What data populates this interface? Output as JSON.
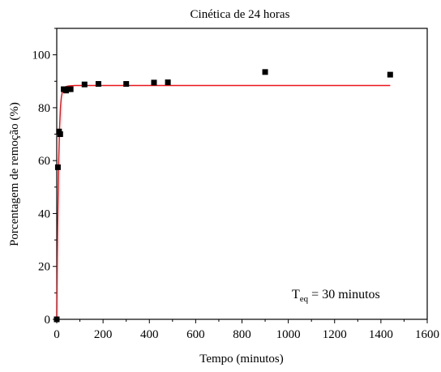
{
  "chart_data": {
    "type": "scatter",
    "title": "Cinética de 24 horas",
    "xlabel": "Tempo (minutos)",
    "ylabel": "Porcentagem de remoção (%)",
    "xlim": [
      0,
      1600
    ],
    "ylim": [
      0,
      110
    ],
    "x_ticks": [
      "0",
      "200",
      "400",
      "600",
      "800",
      "1000",
      "1200",
      "1400",
      "1600"
    ],
    "y_ticks": [
      "0",
      "20",
      "40",
      "60",
      "80",
      "100"
    ],
    "grid": false,
    "series": [
      {
        "type": "scatter",
        "marker": "square",
        "color": "#000000",
        "x": [
          0,
          5,
          10,
          15,
          30,
          40,
          50,
          60,
          120,
          180,
          300,
          420,
          480,
          900,
          1440
        ],
        "y": [
          0,
          57.5,
          71,
          70,
          87,
          86.5,
          87,
          87,
          88.8,
          89,
          89,
          89.5,
          89.6,
          93.5,
          92.5
        ]
      },
      {
        "type": "line",
        "color": "#e8141b",
        "x": [
          0,
          4,
          8,
          12,
          16,
          20,
          25,
          30,
          40,
          50,
          60,
          80,
          100,
          1440
        ],
        "y": [
          0,
          35,
          58,
          72,
          80,
          84,
          86.5,
          87.5,
          88,
          88.2,
          88.3,
          88.4,
          88.4,
          88.4
        ]
      }
    ],
    "annotation": {
      "prefix": "T",
      "subscript": "eq",
      "suffix": " = 30 minutos"
    }
  }
}
